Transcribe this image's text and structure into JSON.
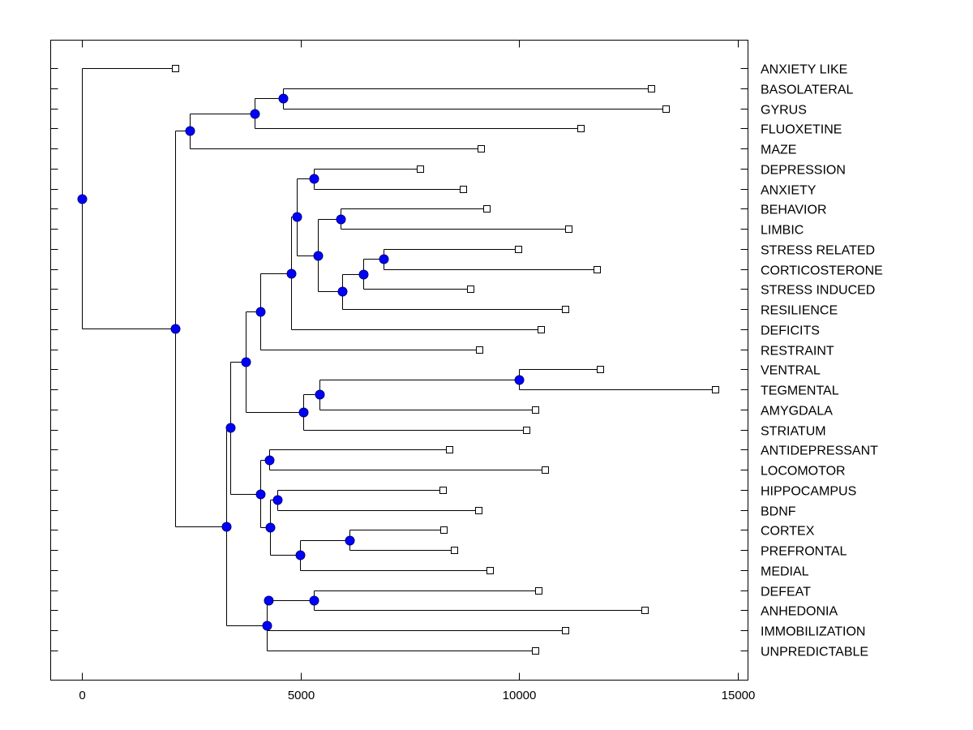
{
  "chart_data": {
    "type": "dendrogram",
    "title": "",
    "xlabel": "",
    "ylabel": "",
    "xlim": [
      -700,
      15250
    ],
    "xticks": [
      0,
      5000,
      10000,
      15000
    ],
    "xtick_labels": [
      "0",
      "5000",
      "10000",
      "15000"
    ],
    "grid": false,
    "colors": {
      "node": "#0000ff",
      "node_outline": "#00007f",
      "line": "#000000",
      "leaf_fill": "#ffffff"
    },
    "leaves": [
      {
        "label": "ANXIETY LIKE",
        "value": 2134
      },
      {
        "label": "BASOLATERAL",
        "value": 13024
      },
      {
        "label": "GYRUS",
        "value": 13358
      },
      {
        "label": "FLUOXETINE",
        "value": 11410
      },
      {
        "label": "MAZE",
        "value": 9128
      },
      {
        "label": "DEPRESSION",
        "value": 7737
      },
      {
        "label": "ANXIETY",
        "value": 8720
      },
      {
        "label": "BEHAVIOR",
        "value": 9258
      },
      {
        "label": "LIMBIC",
        "value": 11132
      },
      {
        "label": "STRESS RELATED",
        "value": 9981
      },
      {
        "label": "CORTICOSTERONE",
        "value": 11781
      },
      {
        "label": "STRESS INDUCED",
        "value": 8887
      },
      {
        "label": "RESILIENCE",
        "value": 11058
      },
      {
        "label": "DEFICITS",
        "value": 10501
      },
      {
        "label": "RESTRAINT",
        "value": 9091
      },
      {
        "label": "VENTRAL",
        "value": 11855
      },
      {
        "label": "TEGMENTAL",
        "value": 14490
      },
      {
        "label": "AMYGDALA",
        "value": 10371
      },
      {
        "label": "STRIATUM",
        "value": 10167
      },
      {
        "label": "ANTIDEPRESSANT",
        "value": 8404
      },
      {
        "label": "LOCOMOTOR",
        "value": 10594
      },
      {
        "label": "HIPPOCAMPUS",
        "value": 8256
      },
      {
        "label": "BDNF",
        "value": 9072
      },
      {
        "label": "CORTEX",
        "value": 8275
      },
      {
        "label": "PREFRONTAL",
        "value": 8516
      },
      {
        "label": "MEDIAL",
        "value": 9332
      },
      {
        "label": "DEFEAT",
        "value": 10445
      },
      {
        "label": "ANHEDONIA",
        "value": 12876
      },
      {
        "label": "IMMOBILIZATION",
        "value": 11058
      },
      {
        "label": "UNPREDICTABLE",
        "value": 10371
      }
    ],
    "tree": {
      "value": 0,
      "children": [
        {
          "leaf": 0
        },
        {
          "value": 2134,
          "children": [
            {
              "value": 2468,
              "children": [
                {
                  "value": 3952,
                  "children": [
                    {
                      "value": 4601,
                      "children": [
                        {
                          "leaf": 1
                        },
                        {
                          "leaf": 2
                        }
                      ]
                    },
                    {
                      "leaf": 3
                    }
                  ]
                },
                {
                  "leaf": 4
                }
              ]
            },
            {
              "value": 3302,
              "children": [
                {
                  "value": 3395,
                  "children": [
                    {
                      "value": 3748,
                      "children": [
                        {
                          "value": 4082,
                          "children": [
                            {
                              "value": 4787,
                              "children": [
                                {
                                  "value": 4917,
                                  "children": [
                                    {
                                      "value": 5306,
                                      "children": [
                                        {
                                          "leaf": 5
                                        },
                                        {
                                          "leaf": 6
                                        }
                                      ]
                                    },
                                    {
                                      "value": 5399,
                                      "children": [
                                        {
                                          "value": 5918,
                                          "children": [
                                            {
                                              "leaf": 7
                                            },
                                            {
                                              "leaf": 8
                                            }
                                          ]
                                        },
                                        {
                                          "value": 5955,
                                          "children": [
                                            {
                                              "value": 6438,
                                              "children": [
                                                {
                                                  "value": 6902,
                                                  "children": [
                                                    {
                                                      "leaf": 9
                                                    },
                                                    {
                                                      "leaf": 10
                                                    }
                                                  ]
                                                },
                                                {
                                                  "leaf": 11
                                                }
                                              ]
                                            },
                                            {
                                              "leaf": 12
                                            }
                                          ]
                                        }
                                      ]
                                    }
                                  ]
                                },
                                {
                                  "leaf": 13
                                }
                              ]
                            },
                            {
                              "leaf": 14
                            }
                          ]
                        },
                        {
                          "value": 5065,
                          "children": [
                            {
                              "value": 5436,
                              "children": [
                                {
                                  "value": 10000,
                                  "children": [
                                    {
                                      "leaf": 15
                                    },
                                    {
                                      "leaf": 16
                                    }
                                  ]
                                },
                                {
                                  "leaf": 17
                                }
                              ]
                            },
                            {
                              "leaf": 18
                            }
                          ]
                        }
                      ]
                    },
                    {
                      "value": 4082,
                      "children": [
                        {
                          "value": 4286,
                          "children": [
                            {
                              "leaf": 19
                            },
                            {
                              "leaf": 20
                            }
                          ]
                        },
                        {
                          "value": 4304,
                          "children": [
                            {
                              "value": 4471,
                              "children": [
                                {
                                  "leaf": 21
                                },
                                {
                                  "leaf": 22
                                }
                              ]
                            },
                            {
                              "value": 4991,
                              "children": [
                                {
                                  "value": 6122,
                                  "children": [
                                    {
                                      "leaf": 23
                                    },
                                    {
                                      "leaf": 24
                                    }
                                  ]
                                },
                                {
                                  "leaf": 25
                                }
                              ]
                            }
                          ]
                        }
                      ]
                    }
                  ]
                },
                {
                  "value": 4230,
                  "children": [
                    {
                      "value": 4267,
                      "children": [
                        {
                          "value": 5306,
                          "children": [
                            {
                              "leaf": 26
                            },
                            {
                              "leaf": 27
                            }
                          ]
                        }
                      ]
                    },
                    {
                      "leaf": 28
                    },
                    {
                      "leaf": 29
                    }
                  ]
                }
              ]
            }
          ]
        }
      ]
    }
  }
}
